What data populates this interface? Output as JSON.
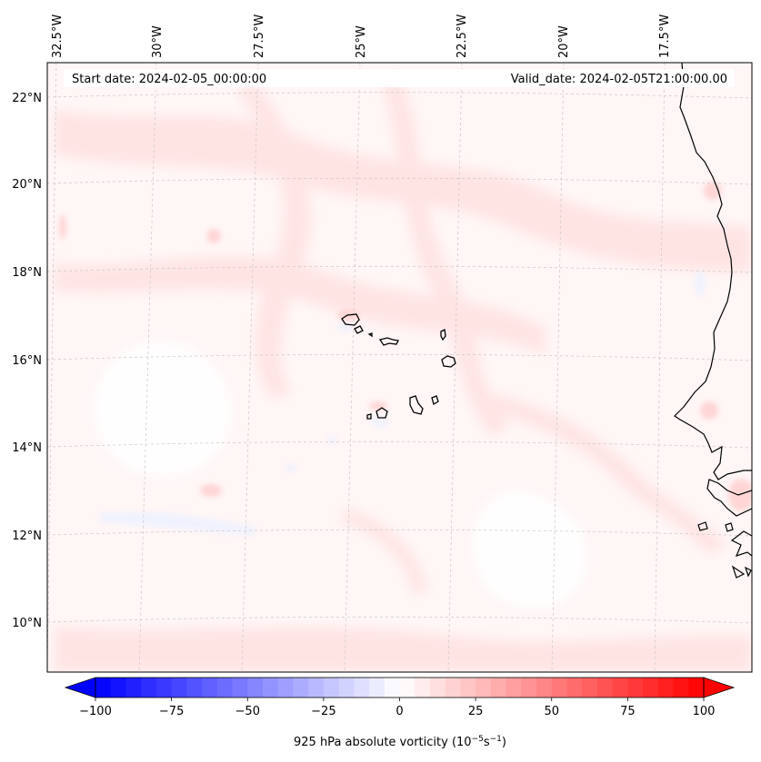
{
  "map": {
    "start_date": "Start date: 2024-02-05_00:00:00",
    "valid_date": "Valid_date: 2024-02-05T21:00:00.00",
    "lon_labels": [
      "32.5°W",
      "30°W",
      "27.5°W",
      "25°W",
      "22.5°W",
      "20°W",
      "17.5°W"
    ],
    "lat_labels": [
      "22°N",
      "20°N",
      "18°N",
      "16°N",
      "14°N",
      "12°N",
      "10°N"
    ],
    "extent": {
      "lon_min": -32.6,
      "lon_max": -15.2,
      "lat_min": 8.9,
      "lat_max": 22.7
    },
    "coastline_color": "#000000",
    "gridline_color": "#c8c8c8"
  },
  "colorbar": {
    "label_prefix": "925 hPa absolute vorticity (10",
    "label_exp1": "−5",
    "label_mid": "s",
    "label_exp2": "−1",
    "label_suffix": ")",
    "tick_labels": [
      "−100",
      "−75",
      "−50",
      "−25",
      "0",
      "25",
      "50",
      "75",
      "100"
    ],
    "vmin": -100,
    "vmax": 100,
    "step": 5,
    "colormap": "bwr",
    "low_color": "#0000ff",
    "mid_color": "#ffffff",
    "high_color": "#ff0000"
  }
}
